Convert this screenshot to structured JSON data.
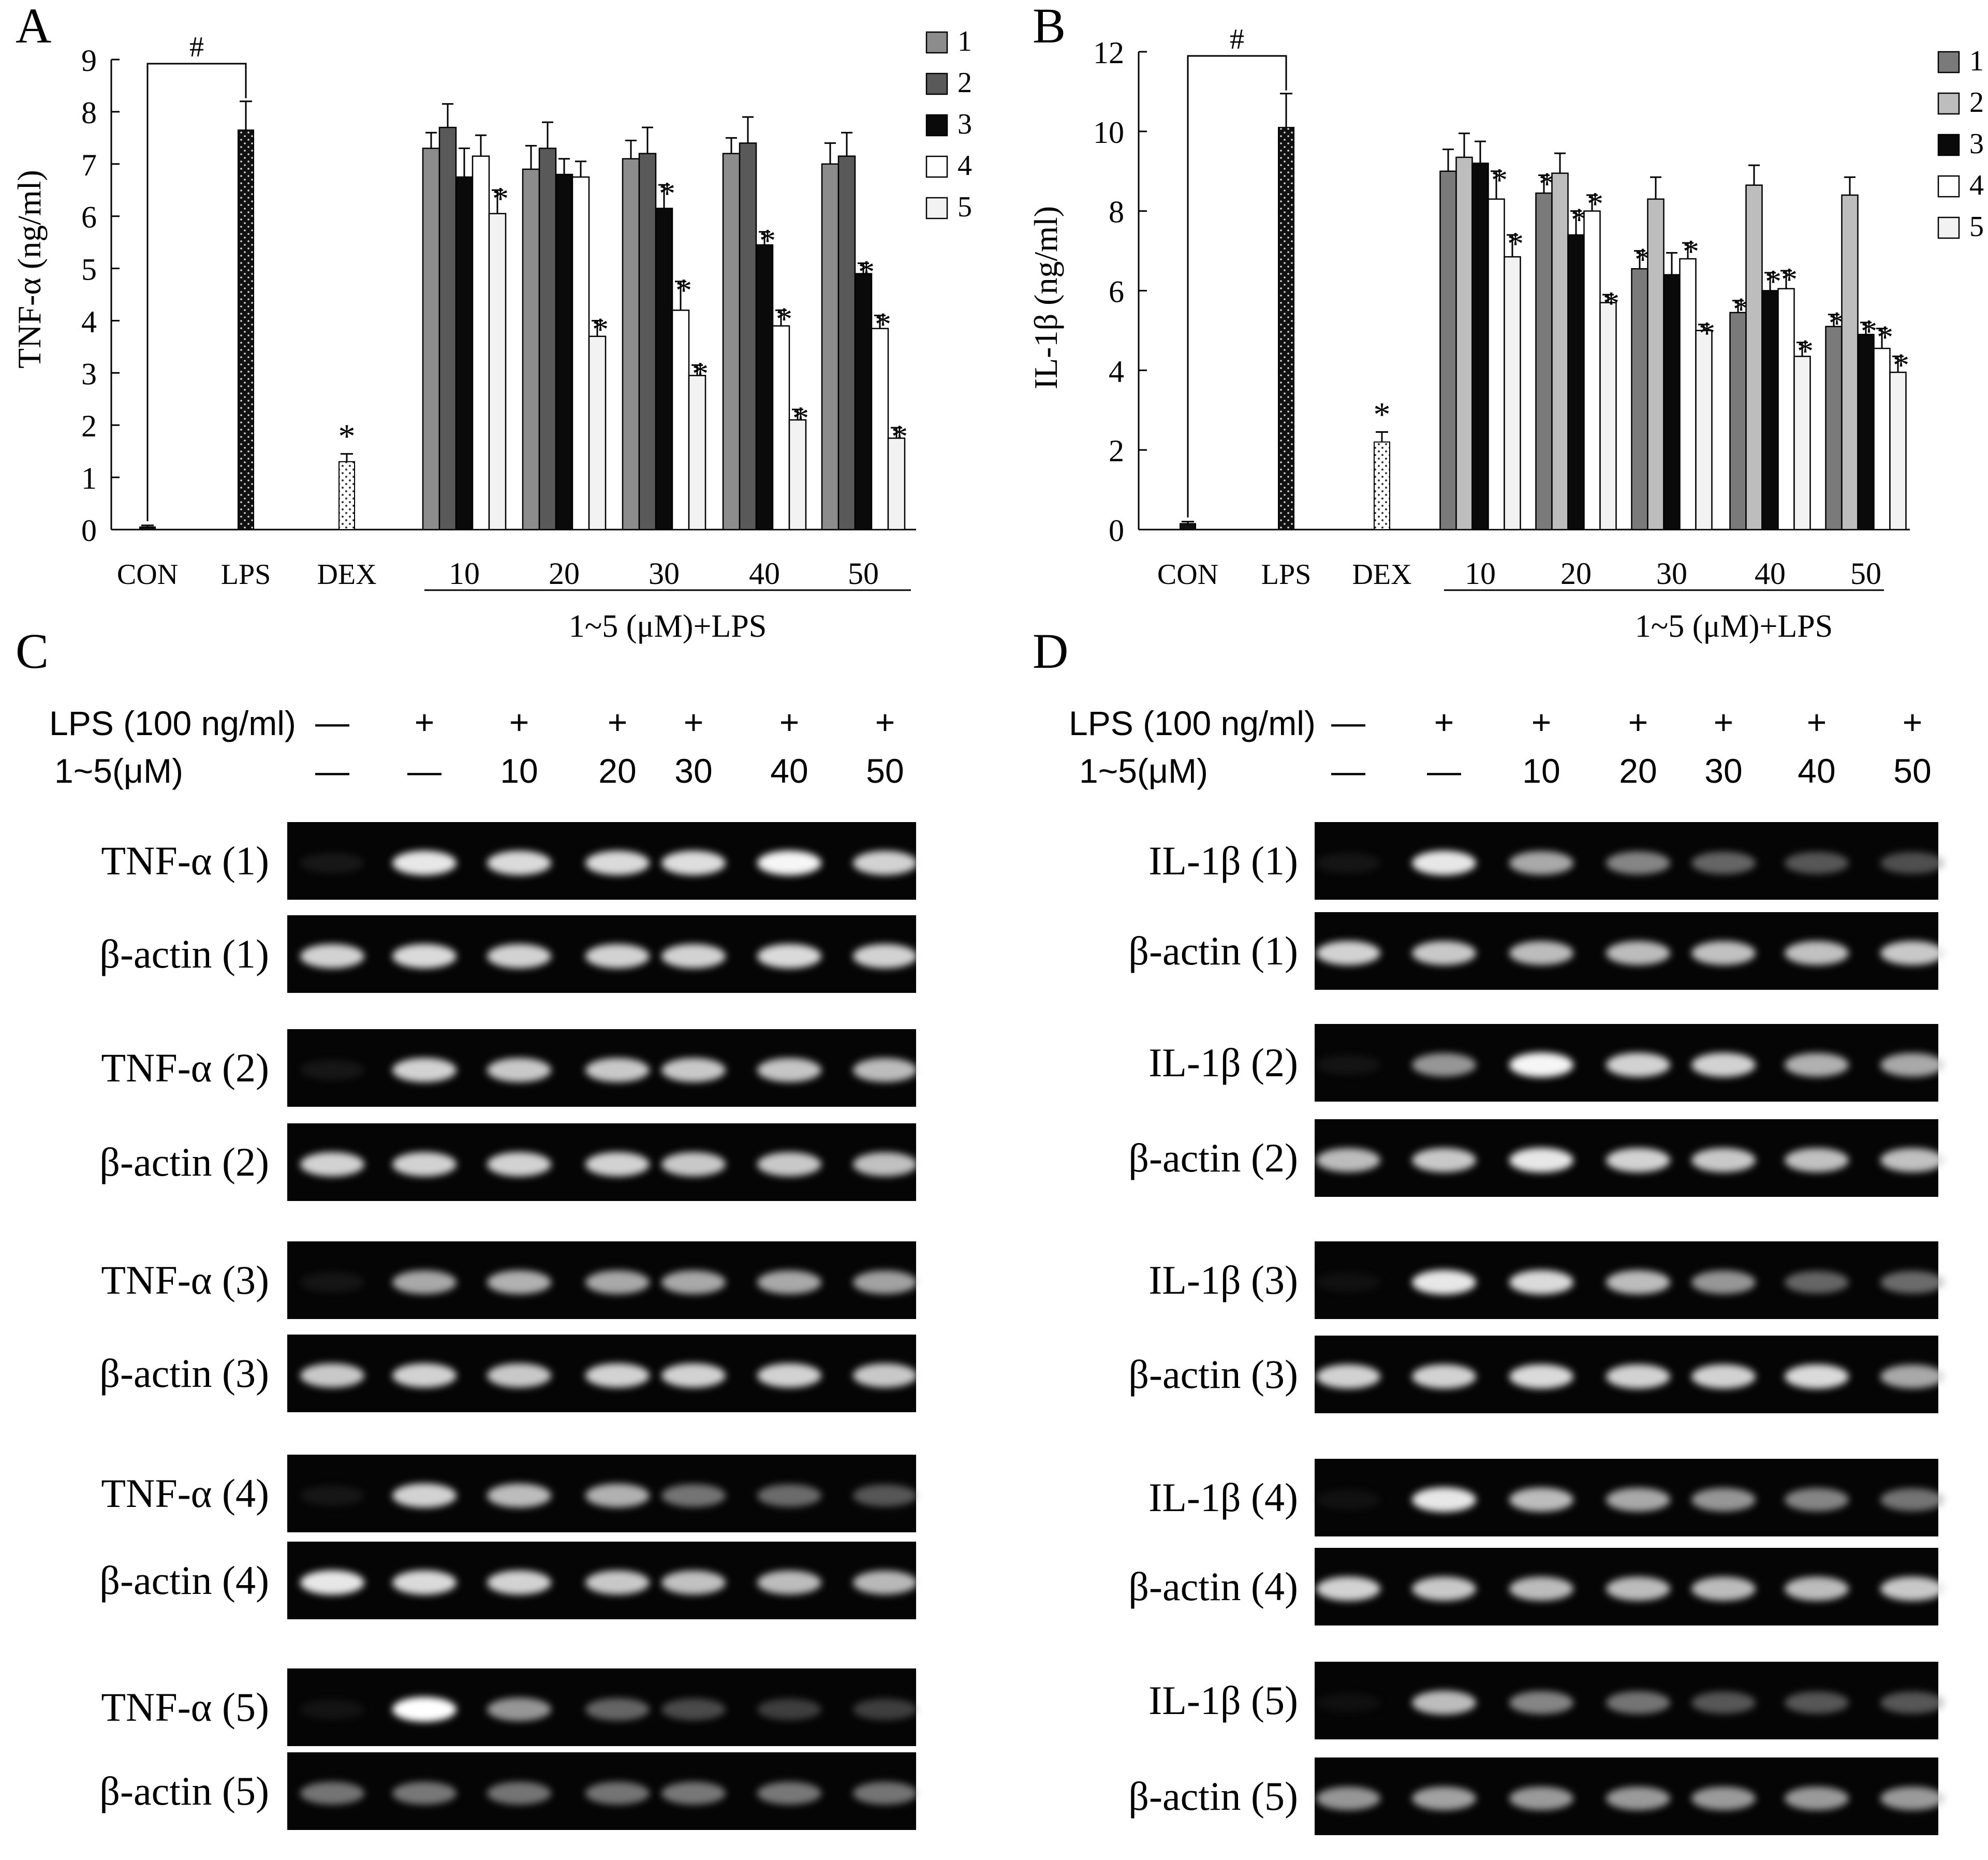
{
  "panels": {
    "A": {
      "letter": "A",
      "ylabel": "TNF-α (ng/ml)"
    },
    "B": {
      "letter": "B",
      "ylabel": "IL-1β (ng/ml)"
    },
    "C": {
      "letter": "C"
    },
    "D": {
      "letter": "D"
    }
  },
  "group_caption": "1~5 (μM)+LPS",
  "significance": {
    "hash": "#",
    "star": "*"
  },
  "legend": {
    "items": [
      "1",
      "2",
      "3",
      "4",
      "5"
    ],
    "colors_A": [
      "#8c8c8c",
      "#595959",
      "#0a0a0a",
      "#ffffff",
      "#f2f2f2"
    ],
    "colors_B": [
      "#7a7a7a",
      "#bdbdbd",
      "#0a0a0a",
      "#ffffff",
      "#f2f2f2"
    ]
  },
  "chart_data": [
    {
      "type": "bar",
      "panel": "A",
      "ylabel": "TNF-α (ng/ml)",
      "xlabel": "1~5 (μM)+LPS",
      "ylim": [
        0,
        9
      ],
      "yticks": [
        0,
        1,
        2,
        3,
        4,
        5,
        6,
        7,
        8,
        9
      ],
      "controls": [
        {
          "label": "CON",
          "value": 0.05,
          "error": 0.03,
          "pattern": "black"
        },
        {
          "label": "LPS",
          "value": 7.65,
          "error": 0.55,
          "pattern": "dotted-black"
        },
        {
          "label": "DEX",
          "value": 1.3,
          "error": 0.15,
          "pattern": "dotted-white",
          "star": true
        }
      ],
      "categories": [
        "10",
        "20",
        "30",
        "40",
        "50"
      ],
      "series": [
        {
          "name": "1",
          "values": [
            7.3,
            6.9,
            7.1,
            7.2,
            7.0
          ],
          "errors": [
            0.3,
            0.45,
            0.35,
            0.3,
            0.4
          ],
          "stars": [
            false,
            false,
            false,
            false,
            false
          ]
        },
        {
          "name": "2",
          "values": [
            7.7,
            7.3,
            7.2,
            7.4,
            7.15
          ],
          "errors": [
            0.45,
            0.5,
            0.5,
            0.5,
            0.45
          ],
          "stars": [
            false,
            false,
            false,
            false,
            false
          ]
        },
        {
          "name": "3",
          "values": [
            6.75,
            6.8,
            6.15,
            5.45,
            4.9
          ],
          "errors": [
            0.55,
            0.3,
            0.45,
            0.25,
            0.2
          ],
          "stars": [
            false,
            false,
            true,
            true,
            true
          ]
        },
        {
          "name": "4",
          "values": [
            7.15,
            6.75,
            4.2,
            3.9,
            3.85
          ],
          "errors": [
            0.4,
            0.3,
            0.55,
            0.3,
            0.25
          ],
          "stars": [
            false,
            false,
            true,
            true,
            true
          ]
        },
        {
          "name": "5",
          "values": [
            6.05,
            3.7,
            2.95,
            2.1,
            1.75
          ],
          "errors": [
            0.45,
            0.3,
            0.2,
            0.2,
            0.2
          ],
          "stars": [
            true,
            true,
            true,
            true,
            true
          ]
        }
      ]
    },
    {
      "type": "bar",
      "panel": "B",
      "ylabel": "IL-1β (ng/ml)",
      "xlabel": "1~5 (μM)+LPS",
      "ylim": [
        0,
        12
      ],
      "yticks": [
        0,
        2,
        4,
        6,
        8,
        10,
        12
      ],
      "controls": [
        {
          "label": "CON",
          "value": 0.15,
          "error": 0.05,
          "pattern": "black"
        },
        {
          "label": "LPS",
          "value": 10.1,
          "error": 0.85,
          "pattern": "dotted-black"
        },
        {
          "label": "DEX",
          "value": 2.2,
          "error": 0.25,
          "pattern": "dotted-white",
          "star": true
        }
      ],
      "categories": [
        "10",
        "20",
        "30",
        "40",
        "50"
      ],
      "series": [
        {
          "name": "1",
          "values": [
            9.0,
            8.45,
            6.55,
            5.45,
            5.1
          ],
          "errors": [
            0.55,
            0.45,
            0.45,
            0.3,
            0.3
          ],
          "stars": [
            false,
            true,
            true,
            true,
            true
          ]
        },
        {
          "name": "2",
          "values": [
            9.35,
            8.95,
            8.3,
            8.65,
            8.4
          ],
          "errors": [
            0.6,
            0.5,
            0.55,
            0.5,
            0.45
          ],
          "stars": [
            false,
            false,
            false,
            false,
            false
          ]
        },
        {
          "name": "3",
          "values": [
            9.2,
            7.4,
            6.4,
            6.0,
            4.9
          ],
          "errors": [
            0.55,
            0.6,
            0.55,
            0.45,
            0.3
          ],
          "stars": [
            false,
            true,
            false,
            true,
            true
          ]
        },
        {
          "name": "4",
          "values": [
            8.3,
            8.0,
            6.8,
            6.05,
            4.55
          ],
          "errors": [
            0.7,
            0.4,
            0.4,
            0.45,
            0.5
          ],
          "stars": [
            true,
            true,
            true,
            true,
            true
          ]
        },
        {
          "name": "5",
          "values": [
            6.85,
            5.7,
            5.0,
            4.35,
            3.95
          ],
          "errors": [
            0.55,
            0.2,
            0.15,
            0.35,
            0.4
          ],
          "stars": [
            true,
            true,
            true,
            true,
            true
          ]
        }
      ]
    }
  ],
  "gels": {
    "C": {
      "lps_label": "LPS (100 ng/ml)",
      "conc_label": "1~5(μM)",
      "lps_marks": [
        "—",
        "+",
        "+",
        "+",
        "+",
        "+",
        "+"
      ],
      "conc_marks": [
        "—",
        "—",
        "10",
        "20",
        "30",
        "40",
        "50"
      ],
      "rows": [
        {
          "label": "TNF-α (1)",
          "intensities": [
            0.22,
            0.95,
            0.92,
            0.92,
            0.93,
            0.98,
            0.9
          ]
        },
        {
          "label": "β-actin (1)",
          "intensities": [
            0.9,
            0.92,
            0.9,
            0.9,
            0.9,
            0.92,
            0.9
          ]
        },
        {
          "label": "TNF-α (2)",
          "intensities": [
            0.2,
            0.9,
            0.88,
            0.88,
            0.88,
            0.87,
            0.85
          ]
        },
        {
          "label": "β-actin (2)",
          "intensities": [
            0.9,
            0.9,
            0.9,
            0.9,
            0.88,
            0.88,
            0.86
          ]
        },
        {
          "label": "TNF-α (3)",
          "intensities": [
            0.18,
            0.8,
            0.82,
            0.8,
            0.8,
            0.8,
            0.78
          ]
        },
        {
          "label": "β-actin (3)",
          "intensities": [
            0.88,
            0.9,
            0.88,
            0.9,
            0.9,
            0.9,
            0.88
          ]
        },
        {
          "label": "TNF-α (4)",
          "intensities": [
            0.2,
            0.9,
            0.85,
            0.82,
            0.65,
            0.62,
            0.55
          ]
        },
        {
          "label": "β-actin (4)",
          "intensities": [
            0.95,
            0.92,
            0.9,
            0.88,
            0.86,
            0.85,
            0.84
          ]
        },
        {
          "label": "TNF-α (5)",
          "intensities": [
            0.15,
            1.0,
            0.75,
            0.6,
            0.5,
            0.45,
            0.45
          ]
        },
        {
          "label": "β-actin (5)",
          "intensities": [
            0.65,
            0.66,
            0.65,
            0.65,
            0.66,
            0.66,
            0.65
          ]
        }
      ]
    },
    "D": {
      "lps_label": "LPS (100 ng/ml)",
      "conc_label": "1~5(μM)",
      "lps_marks": [
        "—",
        "+",
        "+",
        "+",
        "+",
        "+",
        "+"
      ],
      "conc_marks": [
        "—",
        "—",
        "10",
        "20",
        "30",
        "40",
        "50"
      ],
      "rows": [
        {
          "label": "IL-1β (1)",
          "intensities": [
            0.18,
            0.95,
            0.8,
            0.7,
            0.6,
            0.55,
            0.52
          ]
        },
        {
          "label": "β-actin (1)",
          "intensities": [
            0.9,
            0.88,
            0.85,
            0.85,
            0.86,
            0.86,
            0.88
          ]
        },
        {
          "label": "IL-1β (2)",
          "intensities": [
            0.15,
            0.75,
            0.98,
            0.9,
            0.9,
            0.82,
            0.8
          ]
        },
        {
          "label": "β-actin (2)",
          "intensities": [
            0.85,
            0.88,
            0.95,
            0.9,
            0.88,
            0.86,
            0.86
          ]
        },
        {
          "label": "IL-1β (3)",
          "intensities": [
            0.1,
            0.95,
            0.92,
            0.85,
            0.75,
            0.6,
            0.62
          ]
        },
        {
          "label": "β-actin (3)",
          "intensities": [
            0.9,
            0.9,
            0.92,
            0.9,
            0.9,
            0.92,
            0.8
          ]
        },
        {
          "label": "IL-1β (4)",
          "intensities": [
            0.12,
            0.95,
            0.85,
            0.8,
            0.75,
            0.7,
            0.65
          ]
        },
        {
          "label": "β-actin (4)",
          "intensities": [
            0.9,
            0.88,
            0.85,
            0.85,
            0.85,
            0.85,
            0.88
          ]
        },
        {
          "label": "IL-1β (5)",
          "intensities": [
            0.08,
            0.85,
            0.7,
            0.65,
            0.55,
            0.55,
            0.55
          ]
        },
        {
          "label": "β-actin (5)",
          "intensities": [
            0.75,
            0.78,
            0.76,
            0.76,
            0.76,
            0.76,
            0.76
          ]
        }
      ]
    }
  }
}
